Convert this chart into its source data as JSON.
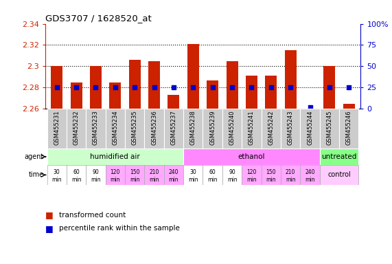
{
  "title": "GDS3707 / 1628520_at",
  "samples": [
    "GSM455231",
    "GSM455232",
    "GSM455233",
    "GSM455234",
    "GSM455235",
    "GSM455236",
    "GSM455237",
    "GSM455238",
    "GSM455239",
    "GSM455240",
    "GSM455241",
    "GSM455242",
    "GSM455243",
    "GSM455244",
    "GSM455245",
    "GSM455246"
  ],
  "bar_values": [
    2.3,
    2.285,
    2.3,
    2.285,
    2.306,
    2.305,
    2.273,
    2.321,
    2.287,
    2.305,
    2.291,
    2.291,
    2.315,
    2.26,
    2.3,
    2.265
  ],
  "percentile_values": [
    25,
    25,
    25,
    25,
    25,
    25,
    25,
    25,
    25,
    25,
    25,
    25,
    25,
    2,
    25,
    25
  ],
  "y_min": 2.26,
  "y_max": 2.34,
  "y_ticks": [
    2.26,
    2.28,
    2.3,
    2.32,
    2.34
  ],
  "y2_ticks": [
    0,
    25,
    50,
    75,
    100
  ],
  "bar_color": "#cc2200",
  "percentile_color": "#0000cc",
  "agent_groups": [
    {
      "label": "humidified air",
      "start": 0,
      "end": 7,
      "color": "#ccffcc"
    },
    {
      "label": "ethanol",
      "start": 7,
      "end": 14,
      "color": "#ff88ff"
    },
    {
      "label": "untreated",
      "start": 14,
      "end": 16,
      "color": "#88ff88"
    }
  ],
  "time_labels": [
    "30\nmin",
    "60\nmin",
    "90\nmin",
    "120\nmin",
    "150\nmin",
    "210\nmin",
    "240\nmin",
    "30\nmin",
    "60\nmin",
    "90\nmin",
    "120\nmin",
    "150\nmin",
    "210\nmin",
    "240\nmin"
  ],
  "time_colors": [
    "#ffffff",
    "#ffffff",
    "#ffffff",
    "#ffaaff",
    "#ffaaff",
    "#ffaaff",
    "#ffaaff",
    "#ffffff",
    "#ffffff",
    "#ffffff",
    "#ffaaff",
    "#ffaaff",
    "#ffaaff",
    "#ffaaff"
  ],
  "time_control_color": "#ffccff",
  "sample_bg": "#cccccc",
  "axis_label_color_red": "#cc2200",
  "axis_label_color_blue": "#0000cc",
  "background_color": "#ffffff"
}
